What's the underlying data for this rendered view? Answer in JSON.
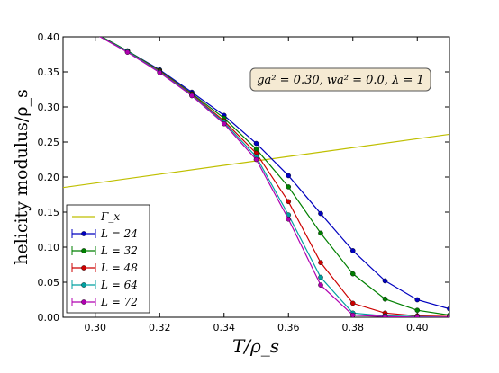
{
  "chart_data": {
    "type": "line",
    "xlabel": "T/ρ_s",
    "ylabel": "helicity modulus/ρ_s",
    "xlim": [
      0.29,
      0.41
    ],
    "ylim": [
      0.0,
      0.4
    ],
    "xticks": [
      "0.30",
      "0.32",
      "0.34",
      "0.36",
      "0.38",
      "0.40"
    ],
    "yticks": [
      "0.00",
      "0.05",
      "0.10",
      "0.15",
      "0.20",
      "0.25",
      "0.30",
      "0.35",
      "0.40"
    ],
    "grid": false,
    "legend_position": "lower-left",
    "annotation": "ga² = 0.30, wa² = 0.0, λ = 1",
    "reference_line": {
      "name": "Γ_x",
      "color": "#bfbf00",
      "x": [
        0.29,
        0.41
      ],
      "y": [
        0.185,
        0.261
      ]
    },
    "x": [
      0.3,
      0.31,
      0.32,
      0.33,
      0.34,
      0.35,
      0.36,
      0.37,
      0.38,
      0.39,
      0.4,
      0.41
    ],
    "series": [
      {
        "name": "L = 24",
        "color": "#0000bf",
        "values": [
          0.405,
          0.38,
          0.353,
          0.321,
          0.288,
          0.248,
          0.202,
          0.148,
          0.095,
          0.052,
          0.025,
          0.012
        ]
      },
      {
        "name": "L = 32",
        "color": "#007f00",
        "values": [
          0.405,
          0.38,
          0.352,
          0.319,
          0.284,
          0.24,
          0.186,
          0.12,
          0.062,
          0.026,
          0.01,
          0.003
        ]
      },
      {
        "name": "L = 48",
        "color": "#cc0000",
        "values": [
          0.404,
          0.379,
          0.351,
          0.318,
          0.28,
          0.234,
          0.165,
          0.078,
          0.02,
          0.006,
          0.002,
          0.001
        ]
      },
      {
        "name": "L = 64",
        "color": "#00a0a0",
        "values": [
          0.404,
          0.379,
          0.35,
          0.317,
          0.278,
          0.229,
          0.146,
          0.057,
          0.006,
          0.002,
          0.001,
          0.0
        ]
      },
      {
        "name": "L = 72",
        "color": "#b000b0",
        "values": [
          0.404,
          0.378,
          0.349,
          0.316,
          0.276,
          0.225,
          0.14,
          0.046,
          0.003,
          0.001,
          0.0,
          0.0
        ]
      }
    ]
  }
}
